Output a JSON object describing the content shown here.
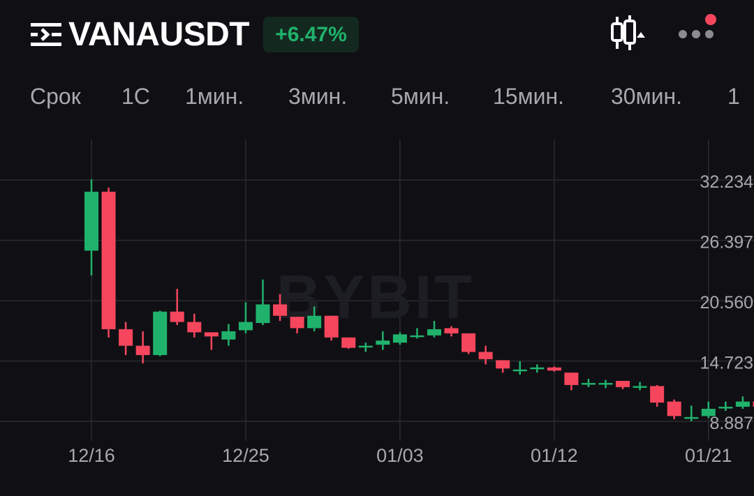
{
  "header": {
    "symbol": "VANAUSDT",
    "change": "+6.47%",
    "menu_icon": "menu-list-icon",
    "candle_icon": "candlestick-toggle-icon",
    "more_icon": "more-dots-icon",
    "notification_color": "#f6465d"
  },
  "timeframes": [
    "Срок",
    "1С",
    "1мин.",
    "3мин.",
    "5мин.",
    "15мин.",
    "30мин.",
    "1"
  ],
  "watermark": "BYBIT",
  "colors": {
    "up": "#20b26c",
    "down": "#f6465d",
    "grid": "#2a2b30",
    "axis_text": "#a8a9ae",
    "bg": "#101014"
  },
  "chart_data": {
    "type": "candlestick",
    "x_tick_labels": [
      "12/16",
      "12/25",
      "01/03",
      "01/12",
      "01/21"
    ],
    "y_tick_labels": [
      "32.234",
      "26.397",
      "20.560",
      "14.723",
      "8.887"
    ],
    "y_ticks": [
      32.234,
      26.397,
      20.56,
      14.723,
      8.887
    ],
    "grid": true,
    "candles": [
      {
        "date": "12/16",
        "o": 25.4,
        "h": 32.3,
        "l": 23.0,
        "c": 31.1
      },
      {
        "date": "12/17",
        "o": 31.1,
        "h": 31.5,
        "l": 17.0,
        "c": 17.8
      },
      {
        "date": "12/18",
        "o": 17.8,
        "h": 18.5,
        "l": 15.3,
        "c": 16.2
      },
      {
        "date": "12/19",
        "o": 16.2,
        "h": 17.6,
        "l": 14.5,
        "c": 15.3
      },
      {
        "date": "12/20",
        "o": 15.3,
        "h": 19.6,
        "l": 15.2,
        "c": 19.5
      },
      {
        "date": "12/21",
        "o": 19.5,
        "h": 21.7,
        "l": 18.2,
        "c": 18.5
      },
      {
        "date": "12/22",
        "o": 18.5,
        "h": 19.3,
        "l": 17.0,
        "c": 17.5
      },
      {
        "date": "12/23",
        "o": 17.5,
        "h": 17.5,
        "l": 15.8,
        "c": 17.1
      },
      {
        "date": "12/24",
        "o": 16.8,
        "h": 18.3,
        "l": 16.2,
        "c": 17.6
      },
      {
        "date": "12/25",
        "o": 17.7,
        "h": 20.4,
        "l": 17.4,
        "c": 18.5
      },
      {
        "date": "12/26",
        "o": 18.4,
        "h": 22.6,
        "l": 18.2,
        "c": 20.2
      },
      {
        "date": "12/27",
        "o": 20.2,
        "h": 21.2,
        "l": 18.6,
        "c": 19.1
      },
      {
        "date": "12/28",
        "o": 19.0,
        "h": 19.0,
        "l": 17.4,
        "c": 17.9
      },
      {
        "date": "12/29",
        "o": 17.9,
        "h": 20.0,
        "l": 17.6,
        "c": 19.1
      },
      {
        "date": "12/30",
        "o": 19.1,
        "h": 19.1,
        "l": 16.7,
        "c": 17.0
      },
      {
        "date": "12/31",
        "o": 17.0,
        "h": 17.0,
        "l": 15.9,
        "c": 16.0
      },
      {
        "date": "01/01",
        "o": 16.1,
        "h": 16.5,
        "l": 15.6,
        "c": 16.2
      },
      {
        "date": "01/02",
        "o": 16.3,
        "h": 17.6,
        "l": 15.8,
        "c": 16.7
      },
      {
        "date": "01/03",
        "o": 16.5,
        "h": 17.5,
        "l": 16.3,
        "c": 17.3
      },
      {
        "date": "01/04",
        "o": 17.1,
        "h": 17.9,
        "l": 16.9,
        "c": 17.2
      },
      {
        "date": "01/05",
        "o": 17.2,
        "h": 18.6,
        "l": 17.0,
        "c": 17.8
      },
      {
        "date": "01/06",
        "o": 17.9,
        "h": 18.1,
        "l": 17.1,
        "c": 17.4
      },
      {
        "date": "01/07",
        "o": 17.4,
        "h": 17.4,
        "l": 15.4,
        "c": 15.6
      },
      {
        "date": "01/08",
        "o": 15.6,
        "h": 16.2,
        "l": 14.4,
        "c": 14.9
      },
      {
        "date": "01/09",
        "o": 14.8,
        "h": 14.8,
        "l": 13.6,
        "c": 14.0
      },
      {
        "date": "01/10",
        "o": 13.8,
        "h": 14.7,
        "l": 13.4,
        "c": 13.9
      },
      {
        "date": "01/11",
        "o": 14.0,
        "h": 14.4,
        "l": 13.6,
        "c": 14.1
      },
      {
        "date": "01/12",
        "o": 14.1,
        "h": 14.2,
        "l": 13.7,
        "c": 13.8
      },
      {
        "date": "01/13",
        "o": 13.6,
        "h": 13.6,
        "l": 11.9,
        "c": 12.4
      },
      {
        "date": "01/14",
        "o": 12.5,
        "h": 13.0,
        "l": 12.2,
        "c": 12.6
      },
      {
        "date": "01/15",
        "o": 12.5,
        "h": 12.9,
        "l": 12.1,
        "c": 12.6
      },
      {
        "date": "01/16",
        "o": 12.8,
        "h": 12.8,
        "l": 12.0,
        "c": 12.2
      },
      {
        "date": "01/17",
        "o": 12.2,
        "h": 12.7,
        "l": 11.9,
        "c": 12.3
      },
      {
        "date": "01/18",
        "o": 12.3,
        "h": 12.4,
        "l": 10.3,
        "c": 10.7
      },
      {
        "date": "01/19",
        "o": 10.8,
        "h": 11.0,
        "l": 9.1,
        "c": 9.4
      },
      {
        "date": "01/20",
        "o": 9.2,
        "h": 10.4,
        "l": 8.9,
        "c": 9.3
      },
      {
        "date": "01/21",
        "o": 9.4,
        "h": 10.8,
        "l": 9.2,
        "c": 10.1
      },
      {
        "date": "01/22",
        "o": 10.2,
        "h": 10.8,
        "l": 9.9,
        "c": 10.3
      },
      {
        "date": "01/23",
        "o": 10.3,
        "h": 11.3,
        "l": 10.1,
        "c": 10.8
      },
      {
        "date": "01/24",
        "o": 10.8,
        "h": 11.0,
        "l": 10.0,
        "c": 10.3
      }
    ]
  }
}
